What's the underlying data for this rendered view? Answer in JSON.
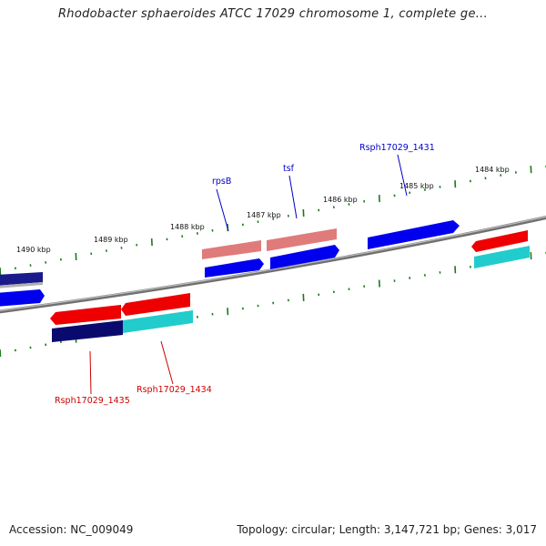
{
  "title": "Rhodobacter sphaeroides ATCC 17029 chromosome 1, complete ge...",
  "footer": {
    "accession": "Accession: NC_009049",
    "topology": "Topology: circular; Length: 3,147,721 bp; Genes: 3,017"
  },
  "ruler_labels": [
    "1490 kbp",
    "1489 kbp",
    "1488 kbp",
    "1487 kbp",
    "1486 kbp",
    "1485 kbp",
    "1484 kbp"
  ],
  "gene_labels": {
    "rpsB": "rpsB",
    "tsf": "tsf",
    "rsph1431": "Rsph17029_1431",
    "rsph1434": "Rsph17029_1434",
    "rsph1435": "Rsph17029_1435"
  },
  "colors": {
    "forward_label": "#0000cc",
    "reverse_label": "#cc0000",
    "gene_blue": "#0000ee",
    "gene_red": "#ee0000",
    "rna_pink": "#e07b7b",
    "rna_cyan": "#22cccc",
    "rna_navy": "#0a0a6e",
    "backbone": "#808080",
    "tick": "#1a7a1a"
  }
}
